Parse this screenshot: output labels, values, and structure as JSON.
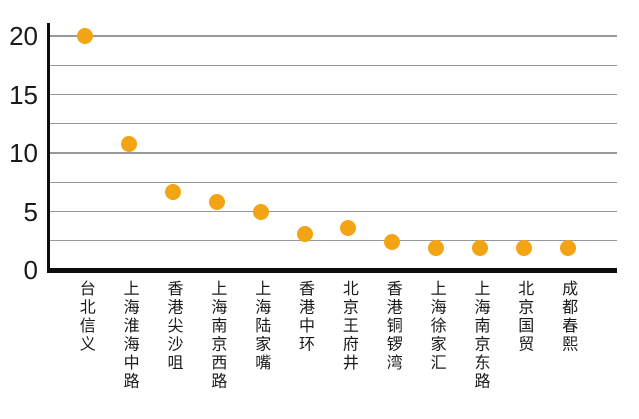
{
  "chart_data": {
    "type": "scatter",
    "title": "",
    "xlabel": "",
    "ylabel": "",
    "categories": [
      "台北信义",
      "上海淮海中路",
      "香港尖沙咀",
      "上海南京西路",
      "上海陆家嘴",
      "香港中环",
      "北京王府井",
      "香港铜锣湾",
      "上海徐家汇",
      "上海南京东路",
      "北京国贸",
      "成都春熙"
    ],
    "values": [
      20,
      10.8,
      6.7,
      5.8,
      5.0,
      3.1,
      3.6,
      2.4,
      1.9,
      1.9,
      1.9,
      1.9
    ],
    "ylim": [
      0,
      21
    ],
    "yticks": [
      "0",
      "5",
      "10",
      "15",
      "20"
    ],
    "ytick_values": [
      0,
      5,
      10,
      15,
      20
    ],
    "gridline_values": [
      2.5,
      5,
      7.5,
      10,
      12.5,
      15,
      17.5,
      20
    ],
    "grid": true,
    "legend": "none",
    "colors": {
      "marker": "#F2A414",
      "gridline": "#999999",
      "axis": "#0d0d0d",
      "text": "#1a1a1a"
    }
  }
}
